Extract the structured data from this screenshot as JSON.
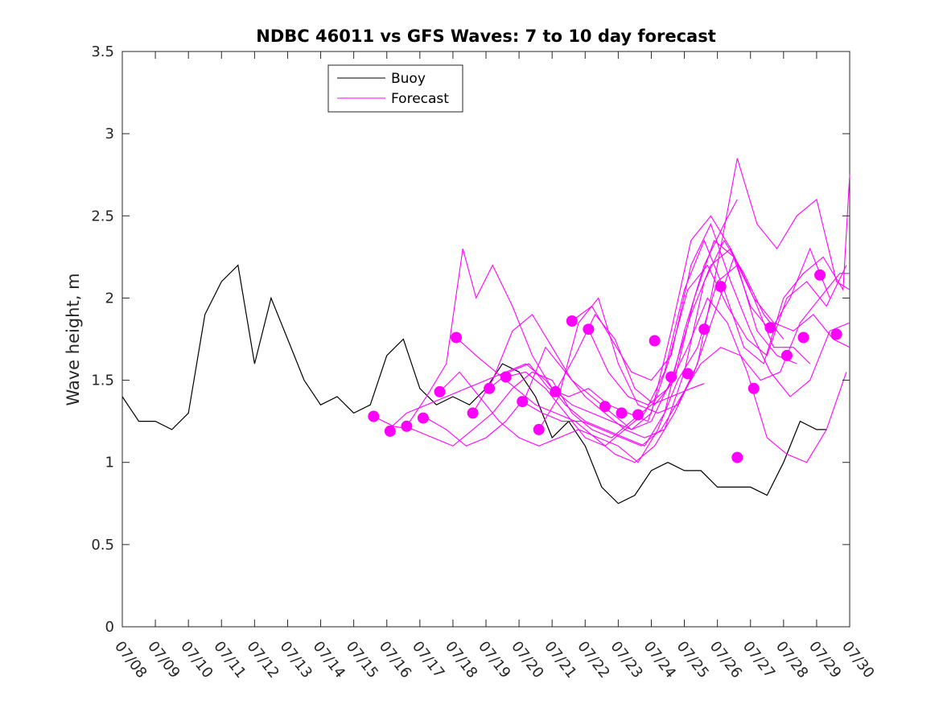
{
  "chart_data": {
    "type": "line",
    "title": "NDBC 46011 vs GFS Waves: 7 to 10 day forecast",
    "xlabel": "",
    "ylabel": "Wave height, m",
    "xlim": [
      "07/08",
      "07/30"
    ],
    "ylim": [
      0,
      3.5
    ],
    "x_ticks": [
      "07/08",
      "07/09",
      "07/10",
      "07/11",
      "07/12",
      "07/13",
      "07/14",
      "07/15",
      "07/16",
      "07/17",
      "07/18",
      "07/19",
      "07/20",
      "07/21",
      "07/22",
      "07/23",
      "07/24",
      "07/25",
      "07/26",
      "07/27",
      "07/28",
      "07/29",
      "07/30"
    ],
    "y_ticks": [
      "0",
      "0.5",
      "1",
      "1.5",
      "2",
      "2.5",
      "3",
      "3.5"
    ],
    "legend": {
      "placement": "top-left",
      "entries": [
        "Buoy",
        "Forecast"
      ]
    },
    "colors": {
      "buoy": "#000000",
      "forecast": "#ff00ff"
    },
    "grid": false,
    "series": [
      {
        "name": "Buoy",
        "x_day_of_july": [
          8.0,
          8.5,
          9.0,
          9.5,
          10.0,
          10.5,
          11.0,
          11.5,
          12.0,
          12.5,
          13.0,
          13.5,
          14.0,
          14.5,
          15.0,
          15.5,
          16.0,
          16.5,
          17.0,
          17.5,
          18.0,
          18.5,
          19.0,
          19.5,
          20.0,
          20.5,
          21.0,
          21.5,
          22.0,
          22.5,
          23.0,
          23.5,
          24.0,
          24.5,
          25.0,
          25.5,
          26.0,
          26.5,
          27.0,
          27.5,
          28.0,
          28.5,
          29.0,
          29.3
        ],
        "values": [
          1.4,
          1.25,
          1.25,
          1.2,
          1.3,
          1.9,
          2.1,
          2.2,
          1.6,
          2.0,
          1.75,
          1.5,
          1.35,
          1.4,
          1.3,
          1.35,
          1.65,
          1.75,
          1.45,
          1.35,
          1.4,
          1.35,
          1.45,
          1.6,
          1.55,
          1.4,
          1.15,
          1.25,
          1.1,
          0.85,
          0.75,
          0.8,
          0.95,
          1.0,
          0.95,
          0.95,
          0.85,
          0.85,
          0.85,
          0.8,
          1.0,
          1.25,
          1.2,
          1.2
        ]
      },
      {
        "name": "Forecast",
        "runs": [
          {
            "x_day_of_july": [
              15.6,
              16.2,
              16.8,
              17.4,
              18.0,
              18.6,
              19.2,
              19.8,
              20.4,
              21.0,
              21.6,
              22.2,
              22.8,
              23.4,
              24.0,
              24.6,
              25.2,
              25.6
            ],
            "values": [
              1.28,
              1.22,
              1.2,
              1.15,
              1.1,
              1.2,
              1.3,
              1.45,
              1.55,
              1.5,
              1.3,
              1.2,
              1.15,
              1.25,
              1.35,
              1.4,
              1.45,
              1.48
            ]
          },
          {
            "x_day_of_july": [
              16.0,
              16.6,
              17.2,
              17.8,
              18.4,
              19.0,
              19.6,
              20.2,
              20.8,
              21.4,
              22.0,
              22.6,
              23.2,
              23.8,
              24.4,
              25.0,
              25.6,
              26.2,
              26.6
            ],
            "values": [
              1.19,
              1.3,
              1.35,
              1.4,
              1.45,
              1.5,
              1.55,
              1.6,
              1.5,
              1.35,
              1.25,
              1.2,
              1.15,
              1.1,
              1.3,
              1.8,
              2.2,
              2.45,
              2.6
            ]
          },
          {
            "x_day_of_july": [
              16.6,
              17.2,
              17.8,
              18.3,
              18.7,
              19.2,
              19.8,
              20.4,
              21.0,
              21.6,
              22.2,
              22.8,
              23.4,
              24.0,
              24.6,
              25.2,
              25.8,
              26.4,
              27.0
            ],
            "values": [
              1.22,
              1.4,
              1.6,
              2.3,
              2.0,
              2.2,
              1.95,
              1.65,
              1.45,
              1.35,
              1.3,
              1.25,
              1.2,
              1.3,
              1.8,
              2.35,
              2.5,
              2.3,
              2.05
            ]
          },
          {
            "x_day_of_july": [
              17.2,
              17.8,
              18.4,
              19.0,
              19.6,
              20.2,
              20.8,
              21.4,
              22.0,
              22.6,
              23.2,
              23.8,
              24.4,
              25.0,
              25.6,
              26.2,
              26.8,
              27.4,
              28.0
            ],
            "values": [
              1.27,
              1.2,
              1.1,
              1.15,
              1.25,
              1.4,
              1.7,
              1.55,
              1.4,
              1.3,
              1.2,
              1.15,
              1.2,
              1.55,
              2.1,
              2.35,
              2.15,
              1.9,
              1.75
            ]
          },
          {
            "x_day_of_july": [
              17.6,
              18.2,
              18.8,
              19.4,
              20.0,
              20.6,
              21.2,
              21.8,
              22.4,
              23.0,
              23.6,
              24.2,
              24.8,
              25.4,
              26.0,
              26.6,
              27.2,
              27.8,
              28.4
            ],
            "values": [
              1.43,
              1.55,
              1.4,
              1.25,
              1.15,
              1.1,
              1.15,
              1.2,
              1.15,
              1.1,
              1.0,
              1.2,
              1.5,
              1.7,
              2.1,
              2.2,
              1.8,
              1.65,
              1.6
            ]
          },
          {
            "x_day_of_july": [
              18.1,
              18.7,
              19.3,
              19.9,
              20.5,
              21.1,
              21.7,
              22.3,
              22.9,
              23.5,
              24.1,
              24.7,
              25.3,
              25.9,
              26.5,
              27.1,
              27.7,
              28.3,
              28.8
            ],
            "values": [
              1.76,
              1.65,
              1.55,
              1.45,
              1.35,
              1.3,
              1.25,
              1.15,
              1.05,
              1.0,
              1.1,
              1.3,
              1.55,
              1.9,
              2.25,
              2.0,
              1.7,
              1.7,
              1.6
            ]
          },
          {
            "x_day_of_july": [
              18.6,
              19.2,
              19.8,
              20.4,
              21.0,
              21.6,
              22.2,
              22.8,
              23.4,
              24.0,
              24.6,
              25.2,
              25.8,
              26.4,
              27.0,
              27.6,
              28.2,
              28.8,
              29.4
            ],
            "values": [
              1.3,
              1.5,
              1.8,
              1.9,
              1.7,
              1.5,
              1.4,
              1.3,
              1.2,
              1.25,
              1.5,
              1.9,
              2.2,
              2.3,
              1.95,
              1.8,
              2.0,
              2.3,
              2.0
            ]
          },
          {
            "x_day_of_july": [
              19.1,
              19.7,
              20.3,
              20.9,
              21.5,
              22.1,
              22.7,
              23.3,
              23.9,
              24.5,
              25.1,
              25.7,
              26.3,
              26.9,
              27.5,
              28.1,
              28.7,
              29.3,
              29.9
            ],
            "values": [
              1.45,
              1.55,
              1.6,
              1.45,
              1.4,
              1.45,
              1.35,
              1.3,
              1.25,
              1.6,
              2.05,
              2.2,
              1.95,
              1.75,
              1.65,
              2.0,
              2.1,
              1.95,
              2.2
            ]
          },
          {
            "x_day_of_july": [
              19.6,
              20.2,
              20.8,
              21.4,
              22.0,
              22.6,
              23.2,
              23.8,
              24.4,
              25.0,
              25.6,
              26.2,
              26.8,
              27.4,
              28.0,
              28.6,
              29.2,
              29.8,
              30.0
            ],
            "values": [
              1.52,
              1.55,
              1.45,
              1.3,
              1.15,
              1.1,
              1.2,
              1.3,
              1.55,
              2.05,
              2.35,
              2.05,
              1.7,
              1.6,
              2.0,
              2.15,
              2.25,
              2.05,
              2.75
            ]
          },
          {
            "x_day_of_july": [
              20.1,
              20.7,
              21.3,
              21.9,
              22.5,
              23.1,
              23.7,
              24.3,
              24.9,
              25.5,
              26.1,
              26.7,
              27.3,
              27.9,
              28.5,
              29.1,
              29.7,
              30.0
            ],
            "values": [
              1.37,
              1.3,
              1.25,
              1.25,
              1.2,
              1.15,
              1.1,
              1.2,
              1.4,
              1.6,
              1.7,
              1.65,
              1.5,
              1.55,
              1.85,
              2.0,
              2.15,
              2.15
            ]
          },
          {
            "x_day_of_july": [
              20.6,
              21.2,
              21.8,
              22.4,
              23.0,
              23.6,
              24.2,
              24.8,
              25.4,
              26.0,
              26.6,
              27.2,
              27.8,
              28.4,
              29.0,
              29.6,
              30.0
            ],
            "values": [
              1.2,
              1.4,
              1.85,
              2.0,
              1.6,
              1.35,
              1.3,
              1.35,
              1.6,
              2.2,
              2.85,
              2.45,
              2.3,
              2.5,
              2.6,
              2.1,
              2.05
            ]
          },
          {
            "x_day_of_july": [
              21.1,
              21.7,
              22.3,
              22.9,
              23.5,
              24.1,
              24.7,
              25.3,
              25.9,
              26.5,
              27.1,
              27.7,
              28.3,
              28.9,
              29.5,
              30.0
            ],
            "values": [
              1.43,
              1.65,
              1.9,
              1.75,
              1.45,
              1.35,
              1.5,
              2.0,
              2.35,
              2.25,
              2.0,
              1.85,
              1.8,
              1.9,
              1.75,
              1.7
            ]
          },
          {
            "x_day_of_july": [
              21.6,
              22.2,
              22.8,
              23.4,
              24.0,
              24.6,
              25.2,
              25.8,
              26.4,
              27.0,
              27.6,
              28.2,
              28.8,
              29.4,
              30.0
            ],
            "values": [
              1.86,
              1.95,
              1.75,
              1.55,
              1.5,
              1.65,
              2.2,
              2.45,
              2.1,
              1.8,
              1.55,
              1.4,
              1.5,
              1.8,
              1.85
            ]
          },
          {
            "x_day_of_july": [
              22.1,
              22.7,
              23.3,
              23.9,
              24.5,
              25.1,
              25.7,
              26.3,
              26.9,
              27.5,
              28.1,
              28.7,
              29.3,
              29.9
            ],
            "values": [
              1.81,
              1.55,
              1.4,
              1.35,
              1.45,
              1.7,
              2.0,
              1.85,
              1.55,
              1.15,
              1.05,
              1.0,
              1.2,
              1.55
            ]
          }
        ],
        "markers": {
          "x_day_of_july": [
            15.6,
            16.1,
            16.6,
            17.1,
            17.6,
            18.1,
            18.6,
            19.1,
            19.6,
            20.1,
            20.6,
            21.1,
            21.6,
            22.1,
            22.6,
            23.1,
            23.6,
            24.1,
            24.6,
            25.1,
            25.6,
            26.1,
            26.6,
            27.1,
            27.6,
            28.1,
            28.6,
            29.1,
            29.6
          ],
          "values": [
            1.28,
            1.19,
            1.22,
            1.27,
            1.43,
            1.76,
            1.3,
            1.45,
            1.52,
            1.37,
            1.2,
            1.43,
            1.86,
            1.81,
            1.34,
            1.3,
            1.29,
            1.74,
            1.52,
            1.54,
            1.81,
            2.07,
            1.03,
            1.45,
            1.82,
            1.65,
            1.76,
            2.14,
            1.78
          ]
        }
      }
    ]
  }
}
